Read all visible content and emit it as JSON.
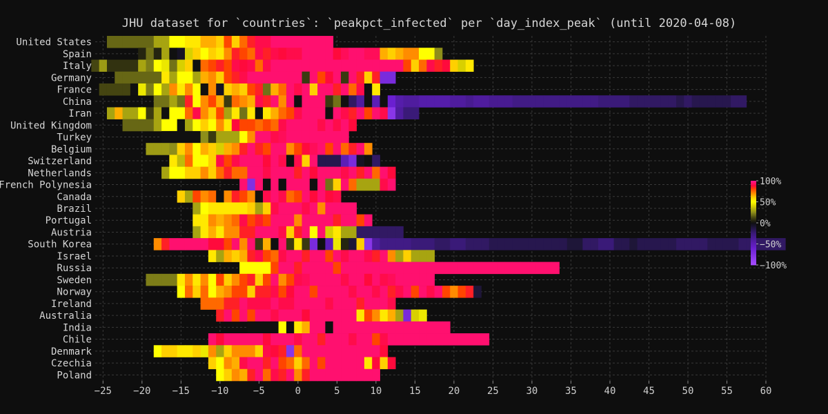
{
  "chart_data": {
    "type": "heatmap",
    "title": "JHU dataset for `countries`: `peakpct_infected` per `day_index_peak` (until 2020-04-08)",
    "xlabel": "",
    "ylabel": "",
    "xlim": [
      -26,
      60
    ],
    "x_ticks": [
      -25,
      -20,
      -15,
      -10,
      -5,
      0,
      5,
      10,
      15,
      20,
      25,
      30,
      35,
      40,
      45,
      50,
      55,
      60
    ],
    "value_range": [
      -100,
      100
    ],
    "colorbar": {
      "ticks": [
        100,
        50,
        0,
        -50,
        -100
      ],
      "tick_labels": [
        "100%",
        "50%",
        "0%",
        "−50%",
        "−100%"
      ],
      "position": "right"
    },
    "grid": true,
    "background": "#0e0e0e",
    "colormap_stops": [
      {
        "v": -100,
        "color": "#a64dff"
      },
      {
        "v": -60,
        "color": "#6a1fd0"
      },
      {
        "v": -25,
        "color": "#3a1a78"
      },
      {
        "v": -8,
        "color": "#1a1530"
      },
      {
        "v": 0,
        "color": "#101010"
      },
      {
        "v": 10,
        "color": "#3a3a10"
      },
      {
        "v": 25,
        "color": "#8e8e1a"
      },
      {
        "v": 40,
        "color": "#d8d000"
      },
      {
        "v": 50,
        "color": "#ffff00"
      },
      {
        "v": 60,
        "color": "#ffd000"
      },
      {
        "v": 70,
        "color": "#ff8c00"
      },
      {
        "v": 80,
        "color": "#ff4500"
      },
      {
        "v": 88,
        "color": "#ff0a3c"
      },
      {
        "v": 100,
        "color": "#ff1493"
      }
    ],
    "rows": [
      {
        "name": "United States",
        "x0": -24,
        "values": [
          18,
          18,
          18,
          18,
          18,
          18,
          30,
          30,
          50,
          50,
          55,
          55,
          65,
          65,
          60,
          80,
          60,
          75,
          85,
          90,
          90,
          95,
          95,
          95,
          95,
          95,
          95,
          95,
          95
        ]
      },
      {
        "name": "Spain",
        "x0": -20,
        "values": [
          5,
          20,
          5,
          30,
          0,
          -5,
          40,
          60,
          50,
          60,
          55,
          70,
          85,
          80,
          75,
          90,
          85,
          90,
          88,
          90,
          90,
          95,
          95,
          95,
          95,
          88,
          92,
          95,
          95,
          92,
          92,
          65,
          60,
          65,
          70,
          70,
          50,
          50,
          25
        ]
      },
      {
        "name": "Italy",
        "x0": -26,
        "values": [
          12,
          28,
          8,
          8,
          8,
          8,
          30,
          22,
          50,
          45,
          20,
          40,
          60,
          0,
          75,
          80,
          85,
          80,
          90,
          88,
          90,
          75,
          90,
          95,
          95,
          95,
          95,
          95,
          95,
          95,
          95,
          95,
          95,
          95,
          95,
          95,
          95,
          95,
          95,
          95,
          80,
          60,
          75,
          90,
          85,
          88,
          60,
          40,
          55
        ]
      },
      {
        "name": "Germany",
        "x0": -23,
        "values": [
          18,
          18,
          18,
          18,
          18,
          18,
          55,
          30,
          50,
          50,
          30,
          65,
          70,
          60,
          80,
          85,
          90,
          95,
          95,
          95,
          95,
          95,
          95,
          95,
          10,
          95,
          80,
          88,
          95,
          10,
          95,
          85,
          60,
          85,
          -70,
          -70
        ]
      },
      {
        "name": "France",
        "x0": -25,
        "values": [
          12,
          12,
          12,
          12,
          0,
          45,
          22,
          50,
          30,
          70,
          55,
          70,
          50,
          0,
          70,
          -5,
          60,
          65,
          60,
          80,
          85,
          20,
          65,
          75,
          95,
          90,
          95,
          60,
          95,
          95,
          85,
          95,
          75,
          90,
          0,
          55
        ]
      },
      {
        "name": "China",
        "x0": -18,
        "values": [
          20,
          20,
          30,
          20,
          85,
          50,
          70,
          80,
          65,
          10,
          75,
          70,
          65,
          90,
          85,
          95,
          70,
          95,
          0,
          95,
          95,
          95,
          10,
          20,
          0,
          -20,
          -40,
          0,
          -50,
          0,
          -60,
          -45,
          -40,
          -40,
          -45,
          -45,
          -45,
          -45,
          -40,
          -40,
          -35,
          -40,
          -40,
          -35,
          -35,
          -35,
          -30,
          -30,
          -30,
          -30,
          -30,
          -30,
          -30,
          -30,
          -30,
          -30,
          -30,
          -25,
          -25,
          -25,
          -25,
          -20,
          -20,
          -20,
          -20,
          -20,
          -20,
          -15,
          -20,
          -15,
          -15,
          -15,
          -15,
          -15,
          -20,
          -20
        ]
      },
      {
        "name": "Iran",
        "x0": -24,
        "values": [
          30,
          65,
          30,
          30,
          50,
          10,
          30,
          0,
          50,
          50,
          75,
          90,
          70,
          60,
          80,
          30,
          55,
          20,
          55,
          0,
          55,
          65,
          75,
          80,
          90,
          95,
          95,
          95,
          0,
          95,
          90,
          85,
          95,
          80,
          95,
          90,
          -80,
          -40,
          -25,
          -25
        ]
      },
      {
        "name": "United Kingdom",
        "x0": -22,
        "values": [
          18,
          18,
          18,
          18,
          30,
          50,
          50,
          0,
          30,
          50,
          60,
          50,
          70,
          55,
          88,
          80,
          80,
          75,
          80,
          75,
          90,
          95,
          95,
          95,
          95,
          90,
          95,
          90,
          95,
          88
        ]
      },
      {
        "name": "Turkey",
        "x0": -17,
        "values": [
          0,
          0,
          0,
          0,
          0,
          25,
          10,
          30,
          30,
          30,
          50,
          70,
          95,
          95,
          90,
          92,
          95,
          95,
          95,
          95,
          95,
          95,
          95,
          95
        ]
      },
      {
        "name": "Belgium",
        "x0": -19,
        "values": [
          28,
          28,
          28,
          25,
          60,
          70,
          50,
          65,
          60,
          40,
          65,
          70,
          85,
          95,
          85,
          80,
          95,
          95,
          70,
          80,
          88,
          92,
          95,
          80,
          95,
          75,
          85,
          95,
          70
        ]
      },
      {
        "name": "Switzerland",
        "x0": -16,
        "values": [
          55,
          35,
          75,
          50,
          50,
          60,
          90,
          80,
          90,
          95,
          95,
          95,
          88,
          95,
          90,
          0,
          90,
          60,
          95,
          -15,
          -15,
          -15,
          -50,
          -70,
          -5,
          0,
          -20
        ]
      },
      {
        "name": "Netherlands",
        "x0": -17,
        "values": [
          30,
          50,
          50,
          60,
          60,
          70,
          60,
          75,
          85,
          75,
          75,
          95,
          95,
          90,
          95,
          95,
          95,
          85,
          95,
          88,
          95,
          95,
          95,
          90,
          95,
          85,
          95,
          75,
          95,
          88
        ]
      },
      {
        "name": "French Polynesia",
        "x0": -7,
        "values": [
          95,
          -75,
          95,
          0,
          95,
          0,
          95,
          95,
          95,
          0,
          95,
          20,
          60,
          95,
          75,
          30,
          30,
          30,
          90,
          95
        ]
      },
      {
        "name": "Canada",
        "x0": -15,
        "values": [
          60,
          30,
          80,
          70,
          75,
          0,
          70,
          85,
          80,
          70,
          0,
          90,
          95,
          90,
          75,
          80,
          95,
          88,
          95,
          88,
          90
        ]
      },
      {
        "name": "Brazil",
        "x0": -13,
        "values": [
          30,
          50,
          55,
          55,
          55,
          55,
          55,
          60,
          30,
          60,
          90,
          95,
          95,
          95,
          90,
          95,
          70,
          95,
          95,
          95,
          95
        ]
      },
      {
        "name": "Portugal",
        "x0": -13,
        "values": [
          55,
          55,
          70,
          65,
          70,
          75,
          90,
          80,
          85,
          80,
          95,
          95,
          95,
          70,
          95,
          95,
          95,
          95,
          85,
          95,
          95,
          80,
          95
        ]
      },
      {
        "name": "Austria",
        "x0": -13,
        "values": [
          30,
          55,
          65,
          55,
          70,
          70,
          85,
          85,
          95,
          95,
          95,
          90,
          60,
          85,
          95,
          50,
          95,
          40,
          55,
          30,
          30,
          -20,
          -20,
          -20,
          -20,
          -20,
          -20
        ]
      },
      {
        "name": "South Korea",
        "x0": -18,
        "values": [
          70,
          85,
          95,
          95,
          95,
          95,
          95,
          88,
          88,
          80,
          95,
          70,
          95,
          10,
          65,
          0,
          95,
          10,
          55,
          10,
          -70,
          0,
          -50,
          45,
          5,
          -10,
          60,
          -80,
          -40,
          -30,
          -30,
          -30,
          -30,
          -25,
          -25,
          -25,
          -20,
          -20,
          -25,
          -25,
          -20,
          -20,
          -20,
          -15,
          -15,
          -15,
          -15,
          -15,
          -15,
          -15,
          -15,
          -15,
          -15,
          -10,
          -10,
          -20,
          -20,
          -25,
          -25,
          -15,
          -15,
          -10,
          -15,
          -15,
          -15,
          -15,
          -15,
          -20,
          -20,
          -20,
          -20,
          -15,
          -15,
          -15,
          -15,
          -20,
          -20,
          -20,
          -20,
          -20,
          -20
        ]
      },
      {
        "name": "Israel",
        "x0": -11,
        "values": [
          55,
          30,
          65,
          60,
          65,
          85,
          90,
          80,
          75,
          90,
          95,
          95,
          85,
          95,
          95,
          80,
          95,
          90,
          95,
          95,
          90,
          85,
          95,
          70,
          30,
          60,
          30,
          30,
          30
        ]
      },
      {
        "name": "Russia",
        "x0": -7,
        "values": [
          50,
          50,
          50,
          50,
          80,
          95,
          95,
          85,
          95,
          95,
          95,
          95,
          80,
          95,
          95,
          95,
          95,
          95,
          95,
          95,
          95,
          95,
          95,
          95,
          95,
          95,
          95,
          95,
          95,
          95,
          95,
          95,
          95,
          95,
          95,
          95,
          95,
          95,
          95,
          95,
          95
        ]
      },
      {
        "name": "Sweden",
        "x0": -19,
        "values": [
          22,
          22,
          22,
          22,
          55,
          70,
          55,
          70,
          50,
          80,
          60,
          70,
          80,
          85,
          60,
          80,
          95,
          70,
          80,
          90,
          92,
          95,
          95,
          95,
          95,
          90,
          95,
          95,
          88,
          95,
          90,
          92,
          95,
          95,
          95,
          95,
          95
        ]
      },
      {
        "name": "Norway",
        "x0": -15,
        "values": [
          50,
          75,
          60,
          75,
          50,
          65,
          70,
          80,
          80,
          60,
          85,
          85,
          90,
          80,
          88,
          95,
          95,
          80,
          95,
          95,
          95,
          95,
          90,
          95,
          95,
          90,
          95,
          85,
          90,
          95,
          80,
          95,
          90,
          95,
          80,
          70,
          80,
          85,
          -10
        ]
      },
      {
        "name": "Ireland",
        "x0": -12,
        "values": [
          75,
          75,
          75,
          85,
          85,
          95,
          90,
          90,
          90,
          95,
          90,
          90,
          95,
          95,
          95,
          95,
          90,
          95,
          95,
          95,
          85,
          95,
          95,
          95,
          90
        ]
      },
      {
        "name": "Australia",
        "x0": -10,
        "values": [
          85,
          95,
          80,
          95,
          80,
          95,
          95,
          90,
          95,
          95,
          95,
          88,
          95,
          95,
          95,
          95,
          95,
          95,
          55,
          80,
          70,
          55,
          65,
          30,
          -70,
          40,
          45
        ]
      },
      {
        "name": "India",
        "x0": -6,
        "values": [
          0,
          0,
          0,
          0,
          50,
          0,
          55,
          65,
          95,
          95,
          0,
          95,
          95,
          95,
          95,
          95,
          95,
          95,
          95,
          95,
          95,
          95,
          95,
          95,
          95,
          95
        ]
      },
      {
        "name": "Chile",
        "x0": -11,
        "values": [
          95,
          88,
          95,
          95,
          95,
          95,
          95,
          88,
          95,
          95,
          95,
          90,
          95,
          95,
          85,
          95,
          95,
          95,
          90,
          95,
          95,
          80,
          90,
          95,
          95,
          95,
          95,
          95,
          95,
          95,
          95,
          95,
          95,
          95,
          95,
          95
        ]
      },
      {
        "name": "Denmark",
        "x0": -18,
        "values": [
          50,
          60,
          60,
          55,
          55,
          60,
          45,
          70,
          30,
          60,
          70,
          70,
          70,
          60,
          90,
          88,
          85,
          -80,
          75,
          95,
          95,
          95,
          95,
          95,
          95,
          95,
          95,
          95,
          95,
          88
        ]
      },
      {
        "name": "Czechia",
        "x0": -11,
        "values": [
          60,
          50,
          70,
          65,
          90,
          95,
          95,
          85,
          95,
          80,
          75,
          60,
          75,
          95,
          80,
          95,
          95,
          95,
          95,
          95,
          55,
          88,
          60,
          88
        ]
      },
      {
        "name": "Poland",
        "x0": -10,
        "values": [
          50,
          60,
          70,
          65,
          85,
          95,
          75,
          90,
          85,
          95,
          70,
          85,
          95,
          95,
          95,
          95,
          95,
          95,
          95,
          95,
          95
        ]
      }
    ]
  }
}
